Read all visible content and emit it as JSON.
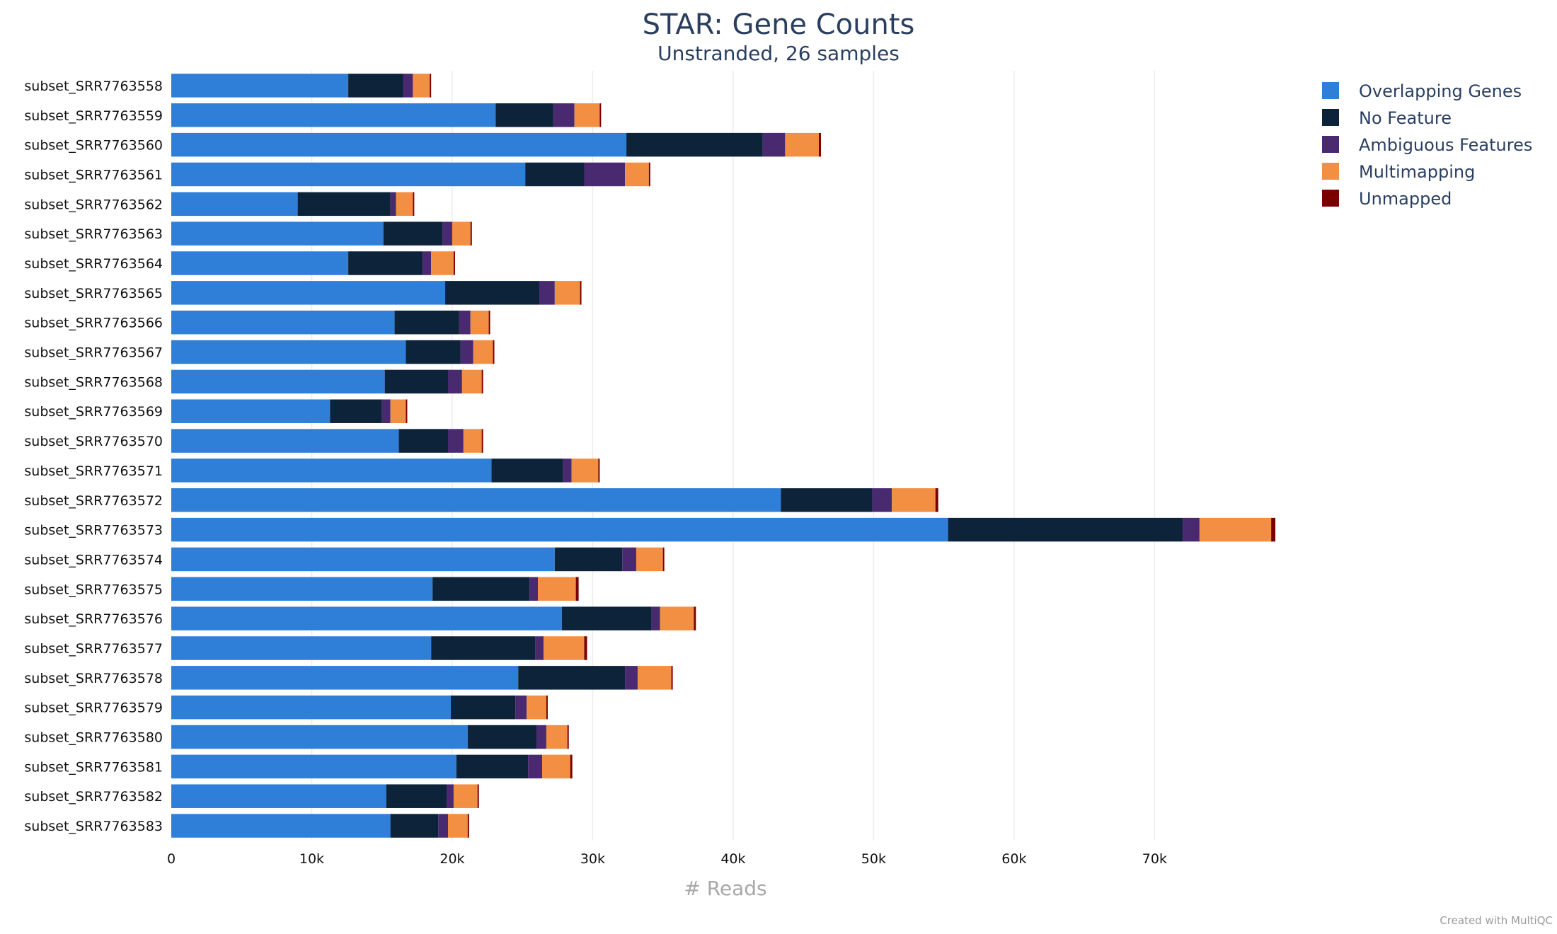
{
  "footer": {
    "credit": "Created with MultiQC"
  },
  "chart_data": {
    "type": "bar",
    "orientation": "horizontal",
    "stacked": true,
    "title": "STAR: Gene Counts",
    "subtitle": "Unstranded, 26 samples",
    "xlabel": "# Reads",
    "ylabel": "",
    "xlim": [
      0,
      79000
    ],
    "xticks": [
      0,
      10000,
      20000,
      30000,
      40000,
      50000,
      60000,
      70000
    ],
    "xtick_labels": [
      "0",
      "10k",
      "20k",
      "30k",
      "40k",
      "50k",
      "60k",
      "70k"
    ],
    "grid": "vertical",
    "legend_position": "top-right",
    "categories": [
      "subset_SRR7763558",
      "subset_SRR7763559",
      "subset_SRR7763560",
      "subset_SRR7763561",
      "subset_SRR7763562",
      "subset_SRR7763563",
      "subset_SRR7763564",
      "subset_SRR7763565",
      "subset_SRR7763566",
      "subset_SRR7763567",
      "subset_SRR7763568",
      "subset_SRR7763569",
      "subset_SRR7763570",
      "subset_SRR7763571",
      "subset_SRR7763572",
      "subset_SRR7763573",
      "subset_SRR7763574",
      "subset_SRR7763575",
      "subset_SRR7763576",
      "subset_SRR7763577",
      "subset_SRR7763578",
      "subset_SRR7763579",
      "subset_SRR7763580",
      "subset_SRR7763581",
      "subset_SRR7763582",
      "subset_SRR7763583"
    ],
    "series": [
      {
        "name": "Overlapping Genes",
        "color": "#2f7ed8",
        "values": [
          12600,
          23100,
          32400,
          25200,
          9000,
          15100,
          12600,
          19500,
          15900,
          16700,
          15200,
          11300,
          16200,
          22800,
          43400,
          55300,
          27300,
          18600,
          27800,
          18500,
          24700,
          19900,
          21100,
          20300,
          15300,
          15600
        ]
      },
      {
        "name": "No Feature",
        "color": "#0d233a",
        "values": [
          3900,
          4100,
          9700,
          4200,
          6600,
          4200,
          5300,
          6700,
          4600,
          3900,
          4500,
          3700,
          3500,
          5100,
          6500,
          16700,
          4800,
          6900,
          6400,
          7400,
          7600,
          4600,
          4900,
          5100,
          4300,
          3400
        ]
      },
      {
        "name": "Ambiguous Features",
        "color": "#492970",
        "values": [
          700,
          1500,
          1600,
          2900,
          400,
          700,
          600,
          1100,
          800,
          900,
          1000,
          600,
          1100,
          600,
          1400,
          1200,
          1000,
          600,
          600,
          600,
          900,
          800,
          700,
          1000,
          500,
          700
        ]
      },
      {
        "name": "Multimapping",
        "color": "#f28f43",
        "values": [
          1200,
          1800,
          2400,
          1700,
          1200,
          1300,
          1600,
          1800,
          1300,
          1400,
          1400,
          1100,
          1300,
          1900,
          3100,
          5100,
          1900,
          2700,
          2400,
          2900,
          2400,
          1400,
          1500,
          2000,
          1700,
          1400
        ]
      },
      {
        "name": "Unmapped",
        "color": "#7a0000",
        "values": [
          100,
          100,
          150,
          100,
          100,
          100,
          100,
          100,
          100,
          100,
          100,
          100,
          100,
          100,
          200,
          300,
          100,
          200,
          150,
          200,
          100,
          100,
          100,
          150,
          100,
          100
        ]
      }
    ]
  }
}
